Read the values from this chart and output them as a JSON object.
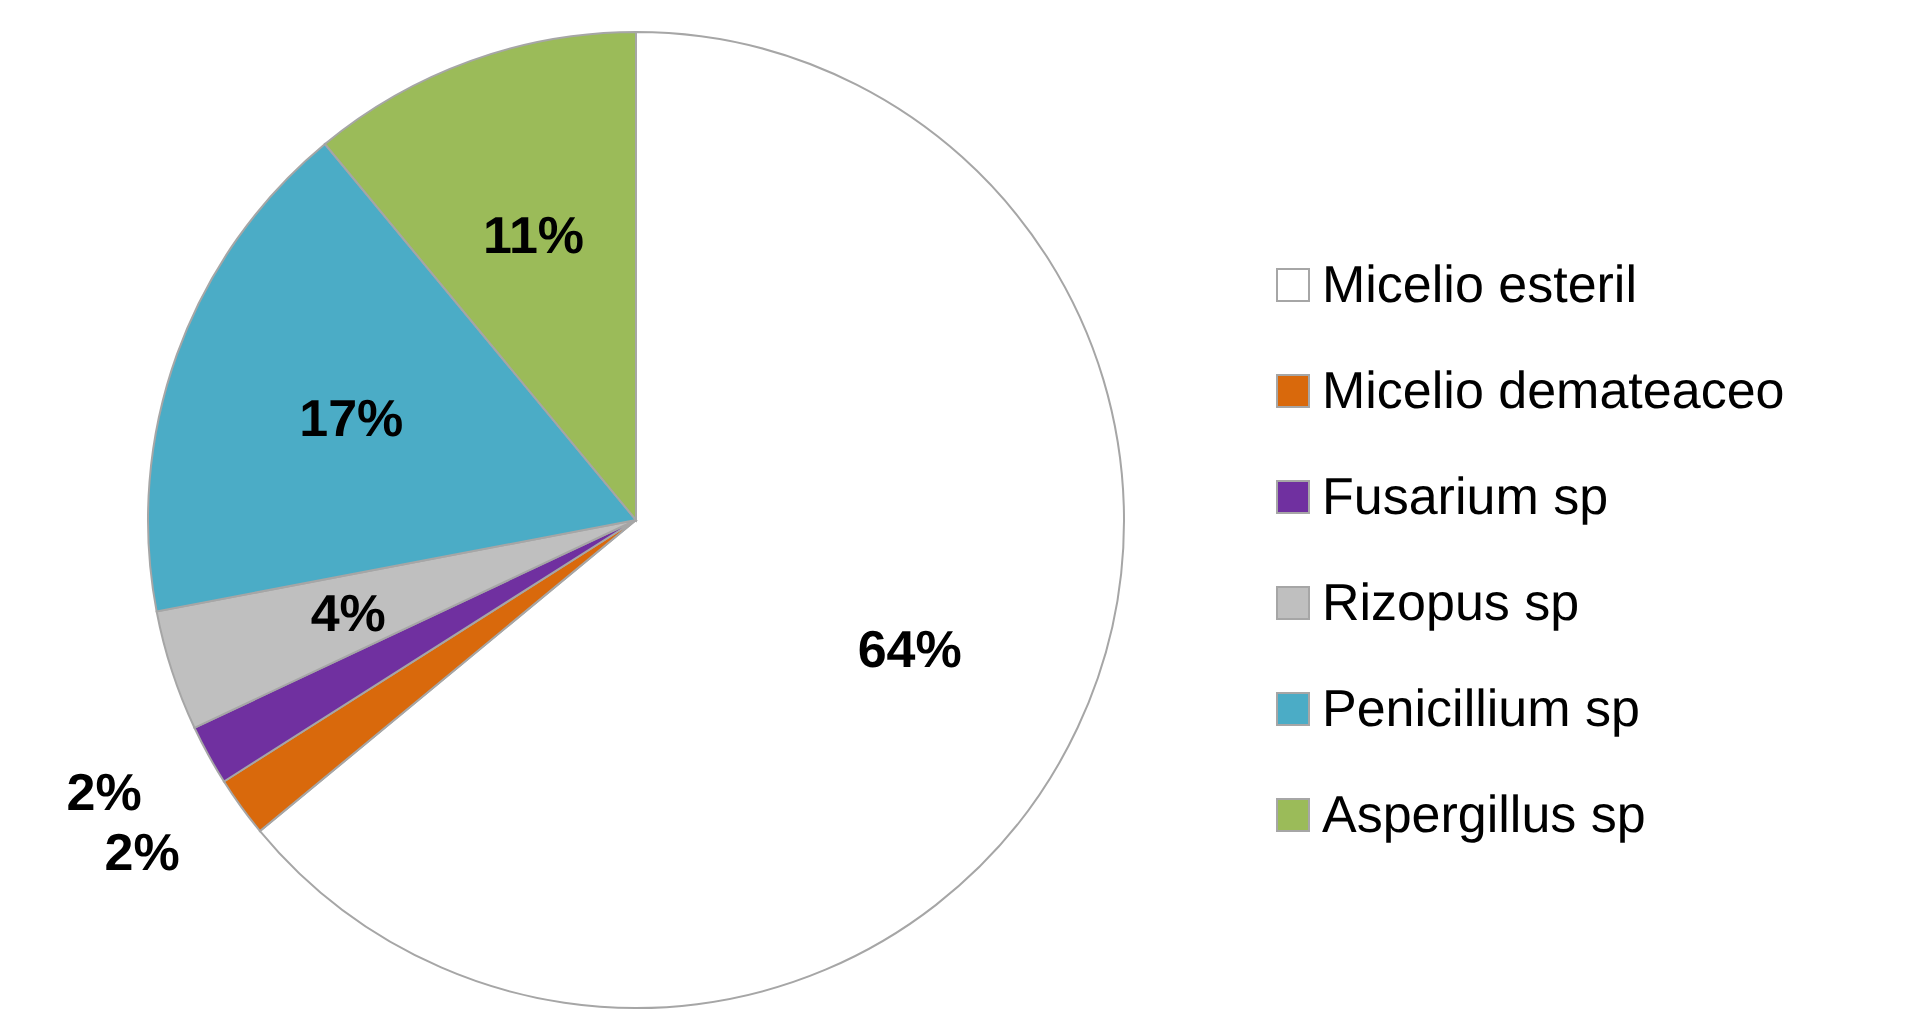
{
  "chart_data": {
    "type": "pie",
    "categories": [
      "Micelio esteril",
      "Micelio demateaceo",
      "Fusarium sp",
      "Rizopus sp",
      "Penicillium sp",
      "Aspergillus sp"
    ],
    "values": [
      64,
      2,
      2,
      4,
      17,
      11
    ],
    "colors": [
      "#ffffff",
      "#d9690c",
      "#7030a0",
      "#bfbfbf",
      "#4bacc6",
      "#9bbb59"
    ],
    "value_labels": [
      "64%",
      "2%",
      "2%",
      "4%",
      "17%",
      "11%"
    ],
    "legend": "right"
  }
}
